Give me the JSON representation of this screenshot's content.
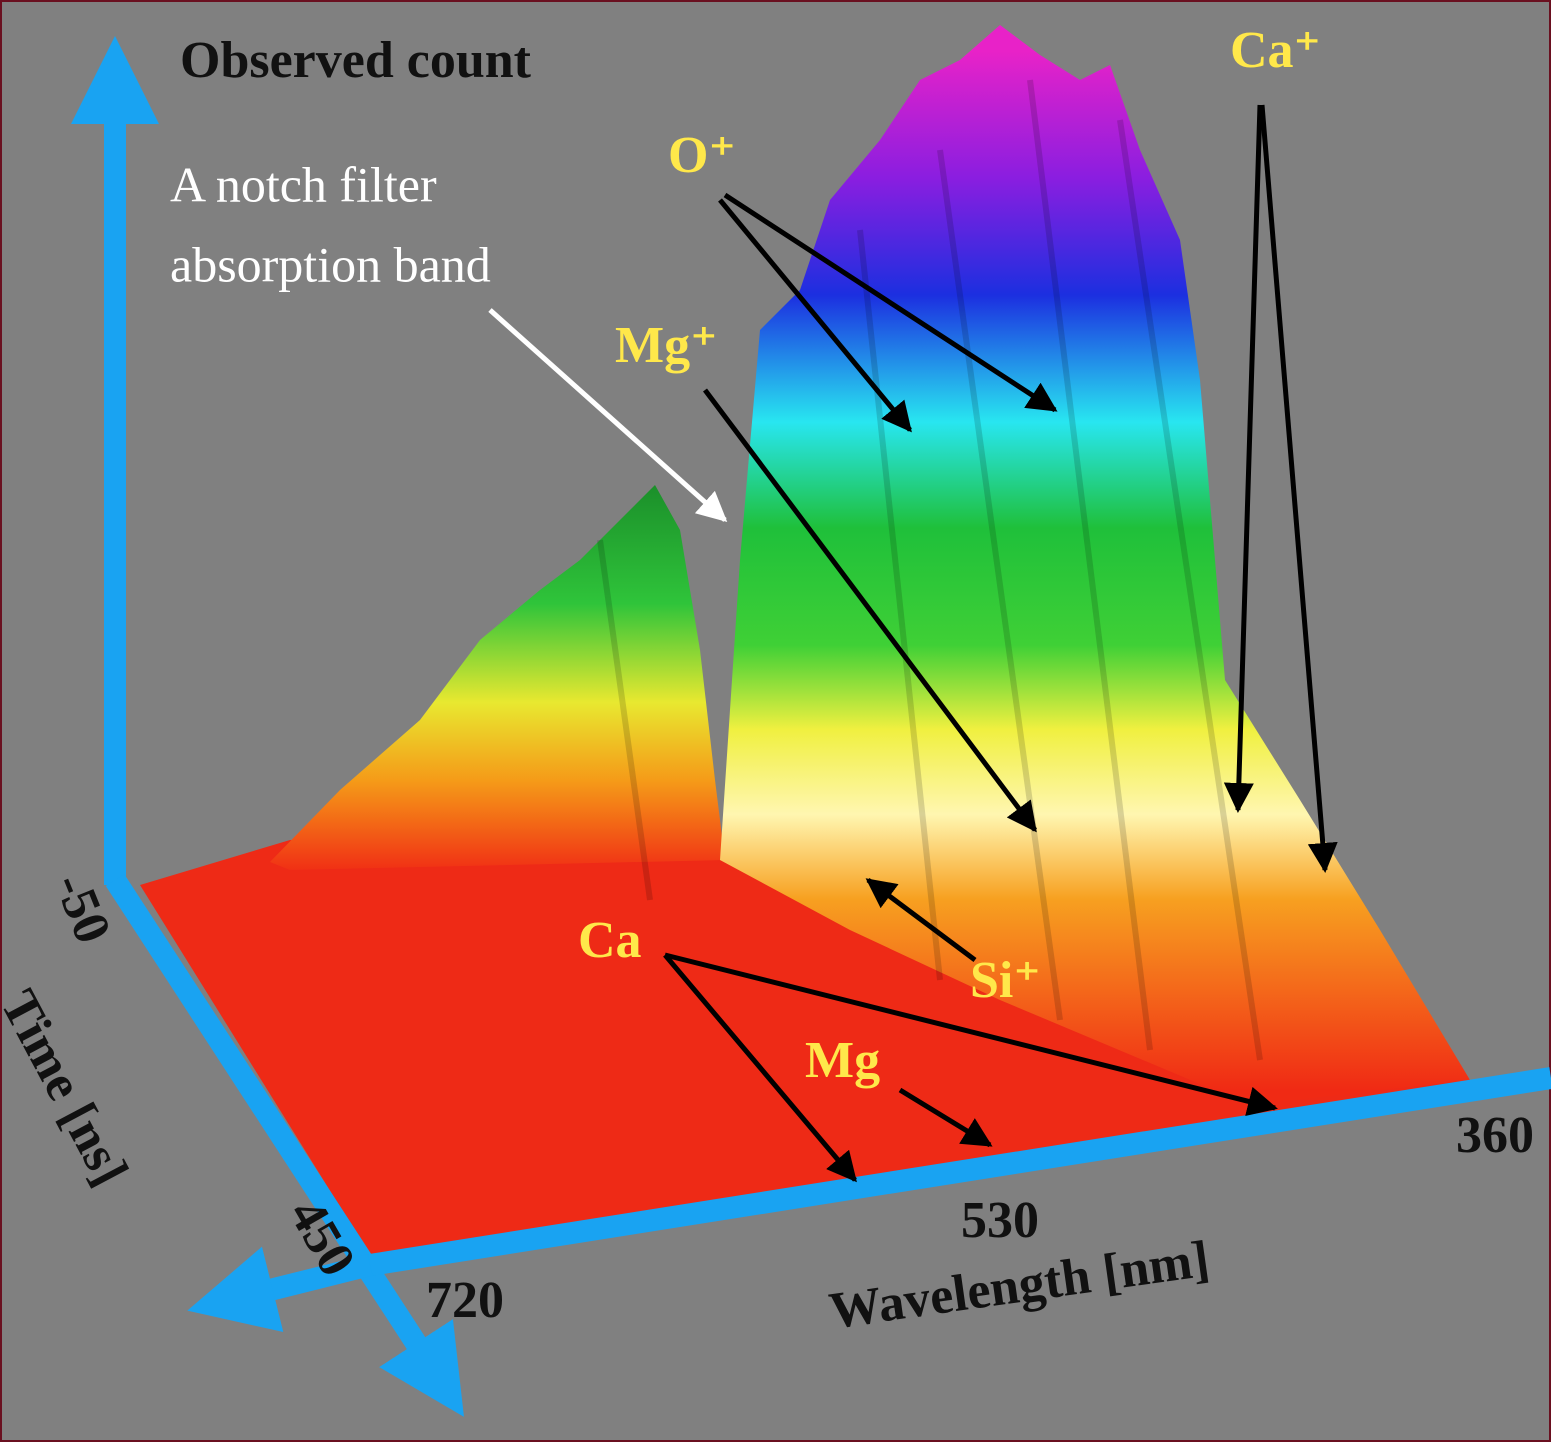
{
  "axes": {
    "count_label": "Observed count",
    "time_label": "Time [ns]",
    "time_ticks": [
      "-50",
      "450"
    ],
    "wavelength_label": "Wavelength [nm]",
    "wavelength_ticks": [
      "720",
      "530",
      "360"
    ]
  },
  "annotations": {
    "notch_filter": [
      "A notch filter",
      "absorption band"
    ],
    "ions": [
      "O⁺",
      "Ca⁺",
      "Mg⁺",
      "Si⁺",
      "Ca",
      "Mg"
    ]
  }
}
